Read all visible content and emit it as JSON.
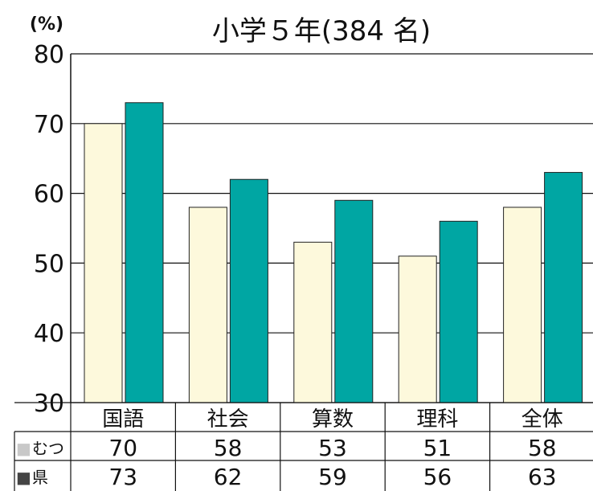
{
  "chart_data": {
    "type": "bar",
    "title": "小学５年(384 名)",
    "yunit": "(%)",
    "ylim": [
      30,
      80
    ],
    "yticks": [
      30,
      40,
      50,
      60,
      70,
      80
    ],
    "grid": true,
    "categories": [
      "国語",
      "社会",
      "算数",
      "理科",
      "全体"
    ],
    "series": [
      {
        "name": "むつ",
        "marker": "■",
        "color": "#fdf9dc",
        "marker_color": "#c8c8c8",
        "values": [
          70,
          58,
          53,
          51,
          58
        ]
      },
      {
        "name": "県",
        "marker": "■",
        "color": "#00a6a3",
        "marker_color": "#444444",
        "values": [
          73,
          62,
          59,
          56,
          63
        ]
      }
    ]
  }
}
